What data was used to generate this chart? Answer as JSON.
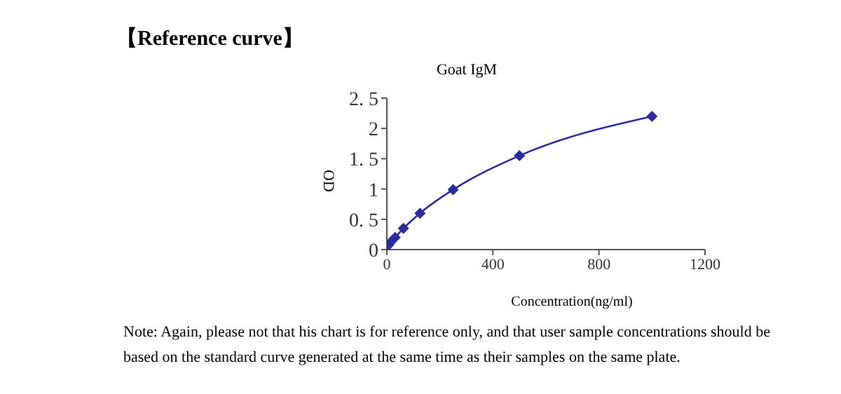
{
  "chart_data": {
    "type": "line",
    "title": "Goat IgM",
    "xlabel": "Concentration(ng/ml)",
    "ylabel": "OD",
    "annotations": [
      "【Reference curve】",
      "Note: Again, please not that his chart is for reference only, and that user sample concentrations should be based on the standard curve generated at the same time as their samples on the same plate."
    ],
    "x": [
      0,
      7.8,
      15.6,
      31.25,
      62.5,
      125,
      250,
      500,
      1000
    ],
    "series": [
      {
        "color": "#2b2b9e",
        "values": [
          0.05,
          0.08,
          0.13,
          0.2,
          0.35,
          0.6,
          0.99,
          1.55,
          2.2
        ]
      }
    ],
    "xlim": [
      0,
      1200
    ],
    "xticks": [
      0,
      400,
      800,
      1200
    ],
    "ylim": [
      0,
      2.5
    ],
    "yticks": [
      0,
      {
        "value": 0.5,
        "label": "0. 5"
      },
      1,
      {
        "value": 1.5,
        "label": "1. 5"
      },
      2,
      {
        "value": 2.5,
        "label": "2. 5"
      }
    ],
    "grid": false,
    "legend": false,
    "marker": "diamond",
    "line_style": "solid"
  }
}
